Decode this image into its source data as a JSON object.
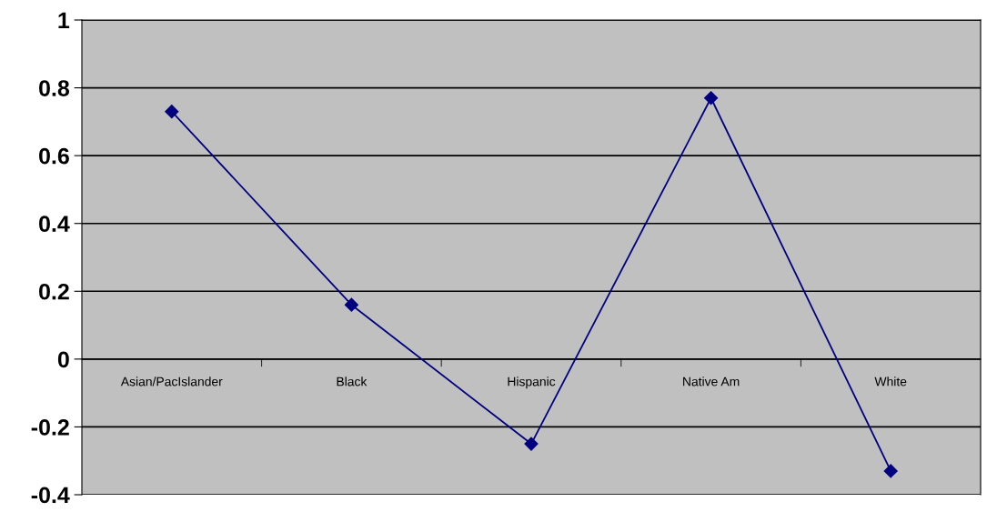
{
  "chart_data": {
    "type": "line",
    "categories": [
      "Asian/PacIslander",
      "Black",
      "Hispanic",
      "Native Am",
      "White"
    ],
    "series": [
      {
        "color": "#000080",
        "values": [
          0.73,
          0.16,
          -0.25,
          0.77,
          -0.33
        ]
      }
    ],
    "ylim": [
      -0.4,
      1
    ],
    "yticks": [
      -0.4,
      -0.2,
      0,
      0.2,
      0.4,
      0.6,
      0.8,
      1
    ],
    "grid": "y",
    "marker": "diamond",
    "line_style": "solid",
    "legend": false
  }
}
